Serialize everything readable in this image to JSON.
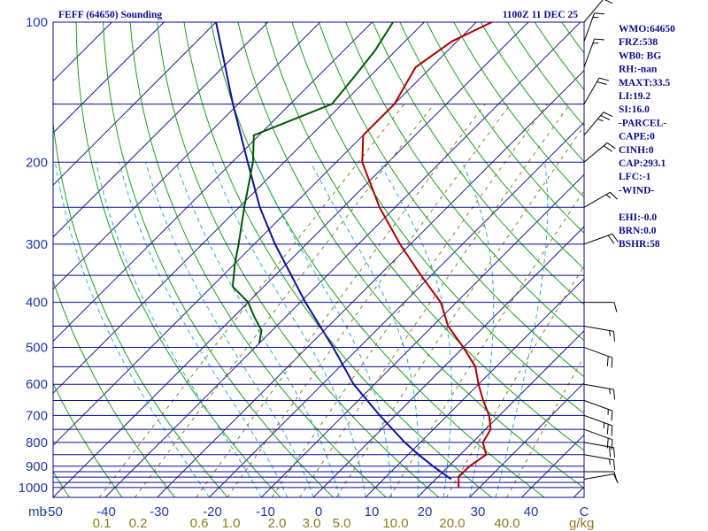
{
  "chart_data": {
    "type": "skew-t",
    "title": "FEFF (64650) Sounding",
    "time_label": "1100Z 11 DEC 25",
    "pressure_unit_label": "mb",
    "mixing_unit_label": "g/kg",
    "pressure_ticks": [
      1000,
      900,
      800,
      700,
      600,
      500,
      400,
      300,
      200,
      100
    ],
    "isobars": [
      1000,
      975,
      950,
      925,
      900,
      850,
      800,
      750,
      700,
      650,
      600,
      550,
      500,
      450,
      400,
      350,
      300,
      250,
      200,
      150,
      100
    ],
    "temperature_ticks": [
      "-50",
      "-40",
      "-30",
      "-20",
      "-10",
      "0",
      "10",
      "20",
      "30",
      "40",
      "C"
    ],
    "mixing_ratio_ticks": [
      "0.1",
      "0.2",
      "0.6",
      "1.0",
      "2.0",
      "3.0",
      "5.0",
      "10.0",
      "20.0",
      "40.0"
    ],
    "temperature_range_c": [
      -50,
      52
    ],
    "pressure_range_mb": [
      1050,
      100
    ],
    "temperature_profile": [
      {
        "p": 1000,
        "t": 26
      },
      {
        "p": 950,
        "t": 24
      },
      {
        "p": 900,
        "t": 24
      },
      {
        "p": 850,
        "t": 25
      },
      {
        "p": 800,
        "t": 22
      },
      {
        "p": 750,
        "t": 21
      },
      {
        "p": 700,
        "t": 18
      },
      {
        "p": 650,
        "t": 14
      },
      {
        "p": 600,
        "t": 10
      },
      {
        "p": 550,
        "t": 6
      },
      {
        "p": 500,
        "t": 0
      },
      {
        "p": 450,
        "t": -7
      },
      {
        "p": 400,
        "t": -13
      },
      {
        "p": 350,
        "t": -22
      },
      {
        "p": 300,
        "t": -32
      },
      {
        "p": 250,
        "t": -43
      },
      {
        "p": 200,
        "t": -55
      },
      {
        "p": 175,
        "t": -60
      },
      {
        "p": 150,
        "t": -60
      },
      {
        "p": 125,
        "t": -63
      },
      {
        "p": 110,
        "t": -61
      },
      {
        "p": 100,
        "t": -57
      }
    ],
    "dewpoint_profile": [
      {
        "p": 490,
        "t": -40
      },
      {
        "p": 460,
        "t": -42
      },
      {
        "p": 430,
        "t": -46
      },
      {
        "p": 400,
        "t": -50
      },
      {
        "p": 370,
        "t": -56
      },
      {
        "p": 330,
        "t": -60
      },
      {
        "p": 300,
        "t": -63
      },
      {
        "p": 250,
        "t": -69
      },
      {
        "p": 200,
        "t": -76
      },
      {
        "p": 175,
        "t": -81
      },
      {
        "p": 150,
        "t": -72
      },
      {
        "p": 130,
        "t": -73
      },
      {
        "p": 115,
        "t": -74
      },
      {
        "p": 100,
        "t": -76
      }
    ],
    "parcel_profile": [
      {
        "p": 960,
        "t": 23
      },
      {
        "p": 900,
        "t": 17
      },
      {
        "p": 850,
        "t": 12
      },
      {
        "p": 800,
        "t": 7
      },
      {
        "p": 700,
        "t": -3
      },
      {
        "p": 600,
        "t": -14
      },
      {
        "p": 500,
        "t": -25
      },
      {
        "p": 400,
        "t": -39
      },
      {
        "p": 300,
        "t": -56
      },
      {
        "p": 250,
        "t": -66
      },
      {
        "p": 200,
        "t": -77
      },
      {
        "p": 150,
        "t": -91
      },
      {
        "p": 100,
        "t": -110
      }
    ],
    "wind_barbs": [
      {
        "p": 960,
        "dir": 80,
        "kt": 10
      },
      {
        "p": 925,
        "dir": 90,
        "kt": 10
      },
      {
        "p": 850,
        "dir": 100,
        "kt": 15
      },
      {
        "p": 800,
        "dir": 100,
        "kt": 20
      },
      {
        "p": 750,
        "dir": 110,
        "kt": 20
      },
      {
        "p": 700,
        "dir": 110,
        "kt": 25
      },
      {
        "p": 650,
        "dir": 110,
        "kt": 15
      },
      {
        "p": 600,
        "dir": 100,
        "kt": 15
      },
      {
        "p": 500,
        "dir": 110,
        "kt": 20
      },
      {
        "p": 450,
        "dir": 100,
        "kt": 15
      },
      {
        "p": 400,
        "dir": 90,
        "kt": 10
      },
      {
        "p": 300,
        "dir": 70,
        "kt": 20
      },
      {
        "p": 250,
        "dir": 60,
        "kt": 15
      },
      {
        "p": 200,
        "dir": 50,
        "kt": 20
      },
      {
        "p": 175,
        "dir": 40,
        "kt": 25
      },
      {
        "p": 150,
        "dir": 30,
        "kt": 20
      },
      {
        "p": 125,
        "dir": 20,
        "kt": 15
      },
      {
        "p": 110,
        "dir": 20,
        "kt": 15
      },
      {
        "p": 100,
        "dir": 40,
        "kt": 10
      }
    ]
  },
  "indices": [
    "WMO:64650",
    "FRZ:538",
    "WB0: BG",
    "RH:-nan",
    "MAXT:33.5",
    "LI:19.2",
    "SI:16.0",
    "-PARCEL-",
    "CAPE:0",
    "CINH:0",
    "CAP:293.1",
    "LFC:-1",
    "-WIND-",
    "",
    "EHI:-0.0",
    "BRN:0.0",
    "BSHR:58"
  ],
  "colors": {
    "isobar": "#0b0b8c",
    "isotherm": "#1a1a90",
    "dry_adiabat": "#1aa01a",
    "moist_adiabat": "#29a8d8",
    "mixing_ratio": "#8a7a1e",
    "temperature": "#b00000",
    "dewpoint": "#005800",
    "parcel": "#10109a",
    "axis_text": "#1f3aa8",
    "barb": "#000000"
  }
}
